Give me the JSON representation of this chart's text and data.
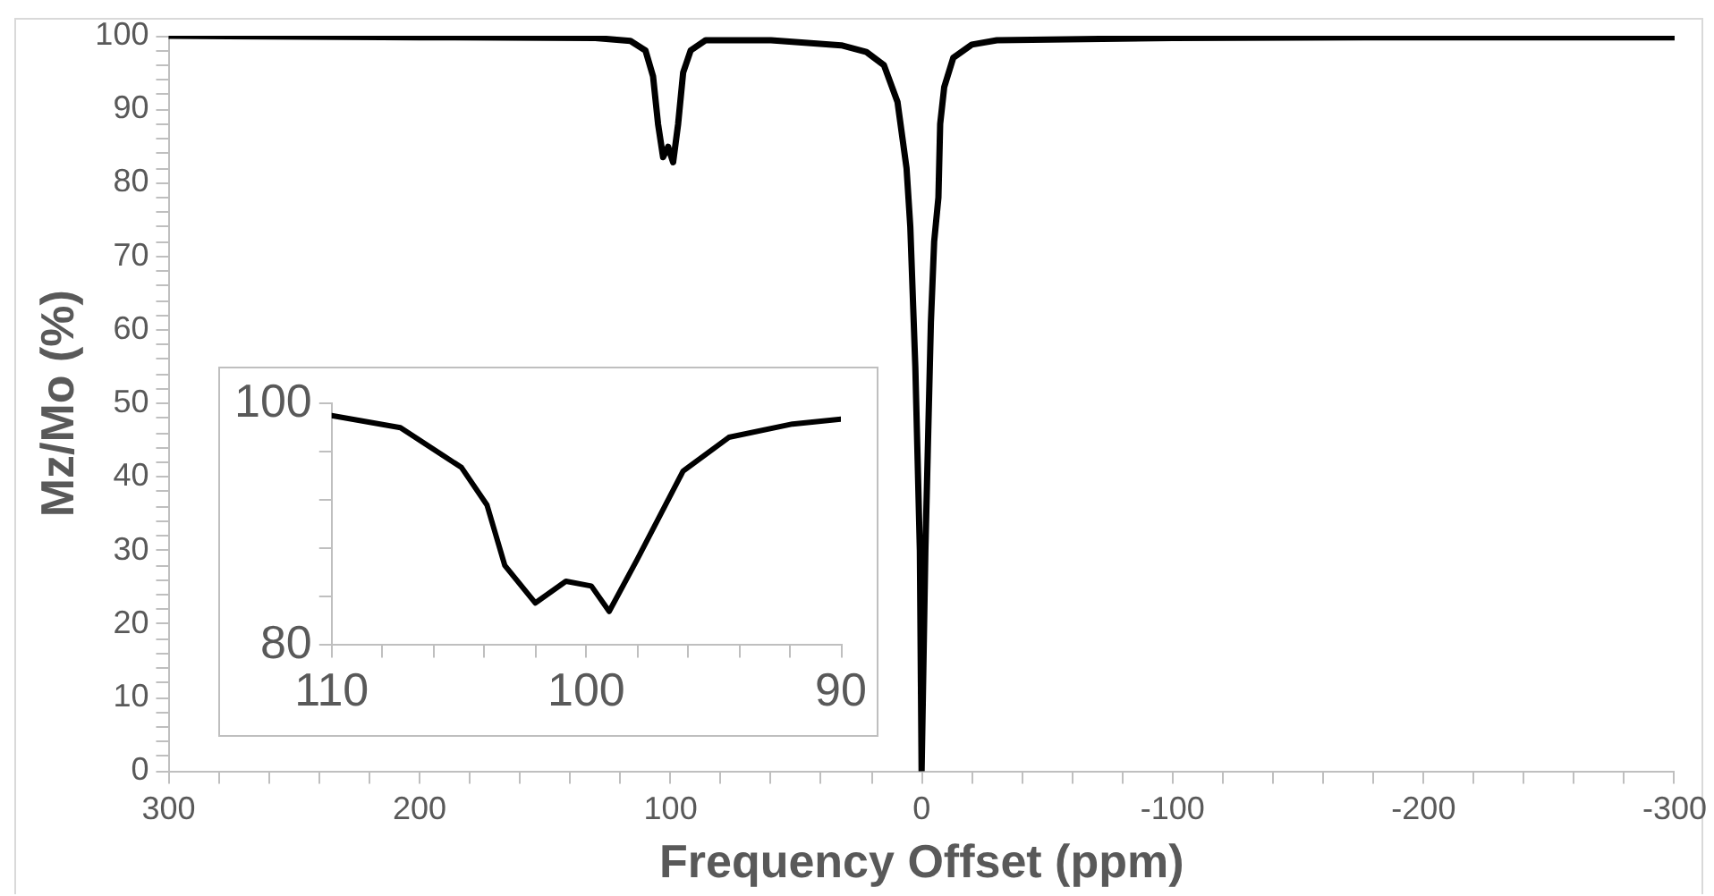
{
  "chart_data": [
    {
      "type": "line",
      "xlabel": "Frequency Offset (ppm)",
      "ylabel": "Mz/Mo (%)",
      "grid": false,
      "marker": "none",
      "line_style": "solid",
      "x": [
        300,
        200,
        130,
        116,
        110,
        107,
        105,
        103,
        101,
        99,
        97,
        95,
        92,
        86,
        60,
        32,
        22,
        15,
        9.6,
        6,
        4.5,
        2.5,
        0.7,
        0,
        -1.5,
        -3.7,
        -5,
        -6.7,
        -7.4,
        -9,
        -12.6,
        -20,
        -30,
        -100,
        -200,
        -300
      ],
      "series": [
        {
          "color": "#000000",
          "values": [
            100,
            99.8,
            99.7,
            99.3,
            98,
            94.5,
            88,
            83.5,
            84.9,
            82.8,
            88,
            95,
            98,
            99.4,
            99.4,
            98.7,
            97.8,
            96,
            91,
            82,
            74,
            55,
            30,
            0,
            30,
            61,
            72,
            78,
            88,
            93,
            97,
            98.8,
            99.4,
            99.7,
            99.8,
            99.8
          ]
        }
      ],
      "xlim": [
        300,
        -300
      ],
      "xticks": [
        300,
        {
          "value": 280,
          "label": null
        },
        {
          "value": 260,
          "label": null
        },
        {
          "value": 240,
          "label": null
        },
        {
          "value": 220,
          "label": null
        },
        200,
        {
          "value": 180,
          "label": null
        },
        {
          "value": 160,
          "label": null
        },
        {
          "value": 140,
          "label": null
        },
        {
          "value": 120,
          "label": null
        },
        100,
        {
          "value": 80,
          "label": null
        },
        {
          "value": 60,
          "label": null
        },
        {
          "value": 40,
          "label": null
        },
        {
          "value": 20,
          "label": null
        },
        0,
        {
          "value": -20,
          "label": null
        },
        {
          "value": -40,
          "label": null
        },
        {
          "value": -60,
          "label": null
        },
        {
          "value": -80,
          "label": null
        },
        -100,
        {
          "value": -120,
          "label": null
        },
        {
          "value": -140,
          "label": null
        },
        {
          "value": -160,
          "label": null
        },
        {
          "value": -180,
          "label": null
        },
        -200,
        {
          "value": -220,
          "label": null
        },
        {
          "value": -240,
          "label": null
        },
        {
          "value": -260,
          "label": null
        },
        {
          "value": -280,
          "label": null
        },
        -300
      ],
      "ylim": [
        0,
        100
      ],
      "yticks": [
        0,
        {
          "value": 2,
          "label": null
        },
        {
          "value": 4,
          "label": null
        },
        {
          "value": 6,
          "label": null
        },
        {
          "value": 8,
          "label": null
        },
        10,
        {
          "value": 12,
          "label": null
        },
        {
          "value": 14,
          "label": null
        },
        {
          "value": 16,
          "label": null
        },
        {
          "value": 18,
          "label": null
        },
        20,
        {
          "value": 22,
          "label": null
        },
        {
          "value": 24,
          "label": null
        },
        {
          "value": 26,
          "label": null
        },
        {
          "value": 28,
          "label": null
        },
        30,
        {
          "value": 32,
          "label": null
        },
        {
          "value": 34,
          "label": null
        },
        {
          "value": 36,
          "label": null
        },
        {
          "value": 38,
          "label": null
        },
        40,
        {
          "value": 42,
          "label": null
        },
        {
          "value": 44,
          "label": null
        },
        {
          "value": 46,
          "label": null
        },
        {
          "value": 48,
          "label": null
        },
        50,
        {
          "value": 52,
          "label": null
        },
        {
          "value": 54,
          "label": null
        },
        {
          "value": 56,
          "label": null
        },
        {
          "value": 58,
          "label": null
        },
        60,
        {
          "value": 62,
          "label": null
        },
        {
          "value": 64,
          "label": null
        },
        {
          "value": 66,
          "label": null
        },
        {
          "value": 68,
          "label": null
        },
        70,
        {
          "value": 72,
          "label": null
        },
        {
          "value": 74,
          "label": null
        },
        {
          "value": 76,
          "label": null
        },
        {
          "value": 78,
          "label": null
        },
        80,
        {
          "value": 82,
          "label": null
        },
        {
          "value": 84,
          "label": null
        },
        {
          "value": 86,
          "label": null
        },
        {
          "value": 88,
          "label": null
        },
        90,
        {
          "value": 92,
          "label": null
        },
        {
          "value": 94,
          "label": null
        },
        {
          "value": 96,
          "label": null
        },
        {
          "value": 98,
          "label": null
        },
        100
      ]
    },
    {
      "type": "line",
      "grid": false,
      "marker": "none",
      "line_style": "solid",
      "x": [
        110,
        107.3,
        104.9,
        103.9,
        103.2,
        102,
        100.8,
        99.8,
        99.1,
        98,
        96.2,
        94.4,
        91.9,
        90
      ],
      "series": [
        {
          "color": "#000000",
          "values": [
            99,
            98,
            94.7,
            91.6,
            86.6,
            83.5,
            85.3,
            84.9,
            82.8,
            87.1,
            94.4,
            97.2,
            98.3,
            98.7
          ]
        }
      ],
      "xlim": [
        110,
        90
      ],
      "xticks": [
        110,
        {
          "value": 108,
          "label": null
        },
        {
          "value": 106,
          "label": null
        },
        {
          "value": 104,
          "label": null
        },
        {
          "value": 102,
          "label": null
        },
        100,
        {
          "value": 98,
          "label": null
        },
        {
          "value": 96,
          "label": null
        },
        {
          "value": 94,
          "label": null
        },
        {
          "value": 92,
          "label": null
        },
        90
      ],
      "ylim": [
        80,
        100
      ],
      "yticks": [
        80,
        {
          "value": 84,
          "label": null
        },
        {
          "value": 88,
          "label": null
        },
        {
          "value": 92,
          "label": null
        },
        {
          "value": 96,
          "label": null
        },
        100
      ]
    }
  ]
}
